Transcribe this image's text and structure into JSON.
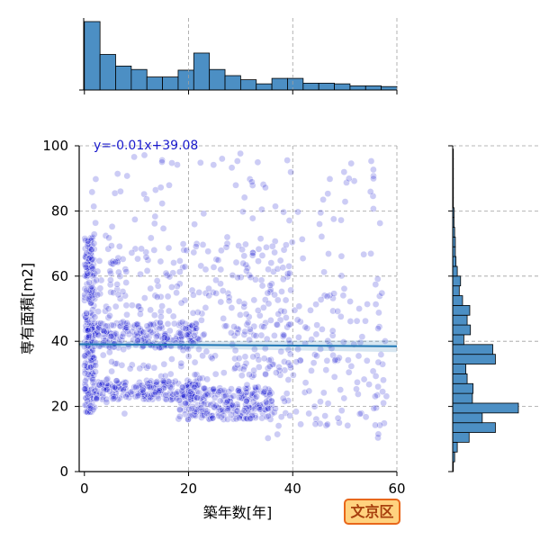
{
  "chart_data": [
    {
      "type": "scatter",
      "panel": "main",
      "xlabel": "築年数[年]",
      "ylabel": "専有面積[m2]",
      "xlim": [
        -1,
        60
      ],
      "ylim": [
        0,
        100
      ],
      "xticks": [
        "0",
        "20",
        "40",
        "60"
      ],
      "yticks": [
        "0",
        "20",
        "40",
        "60",
        "80",
        "100"
      ],
      "grid": true,
      "regression": {
        "slope": -0.01,
        "intercept": 39.08,
        "label": "y=-0.01x+39.08",
        "color": "#1f77b4"
      },
      "point_color": "#0000cc",
      "clusters": [
        {
          "x": [
            0,
            2
          ],
          "y": [
            18,
            72
          ],
          "n": 260
        },
        {
          "x": [
            2,
            22
          ],
          "y": [
            22,
            28
          ],
          "n": 220
        },
        {
          "x": [
            2,
            22
          ],
          "y": [
            38,
            46
          ],
          "n": 200
        },
        {
          "x": [
            18,
            36
          ],
          "y": [
            16,
            26
          ],
          "n": 240
        },
        {
          "x": [
            2,
            40
          ],
          "y": [
            28,
            70
          ],
          "n": 260
        },
        {
          "x": [
            0,
            58
          ],
          "y": [
            10,
            98
          ],
          "n": 220
        },
        {
          "x": [
            30,
            58
          ],
          "y": [
            14,
            55
          ],
          "n": 120
        }
      ]
    },
    {
      "type": "bar",
      "panel": "top-marginal",
      "bin_width": 3,
      "categories": [
        "0-3",
        "3-6",
        "6-9",
        "9-12",
        "12-15",
        "15-18",
        "18-21",
        "21-24",
        "24-27",
        "27-30",
        "30-33",
        "33-36",
        "36-39",
        "39-42",
        "42-45",
        "45-48",
        "48-51",
        "51-54",
        "54-57",
        "57-60"
      ],
      "values": [
        100,
        52,
        35,
        30,
        19,
        19,
        29,
        54,
        30,
        21,
        15,
        9,
        17,
        17,
        10,
        10,
        9,
        6,
        6,
        5
      ],
      "color": "#4c8fc4"
    },
    {
      "type": "bar",
      "panel": "right-marginal",
      "orientation": "horizontal",
      "bin_width": 3,
      "categories": [
        "0-3",
        "3-6",
        "6-9",
        "9-12",
        "12-15",
        "15-18",
        "18-21",
        "21-24",
        "24-27",
        "27-30",
        "30-33",
        "33-36",
        "36-39",
        "39-42",
        "42-45",
        "45-48",
        "48-51",
        "51-54",
        "54-57",
        "57-60",
        "60-63",
        "63-66",
        "66-69",
        "69-72",
        "72-75",
        "75-78",
        "78-81",
        "81-84",
        "84-87",
        "87-90",
        "90-93",
        "93-96",
        "96-99"
      ],
      "values": [
        1,
        3,
        7,
        25,
        65,
        45,
        100,
        30,
        31,
        22,
        20,
        65,
        61,
        17,
        27,
        22,
        26,
        15,
        10,
        12,
        7,
        5,
        4,
        4,
        3,
        2,
        2,
        1,
        1,
        1,
        1,
        1,
        1
      ],
      "color": "#4c8fc4"
    }
  ],
  "badge": {
    "label": "文京区",
    "background": "#ffd27f",
    "border": "#e8671b",
    "text_color": "#a8400e"
  }
}
